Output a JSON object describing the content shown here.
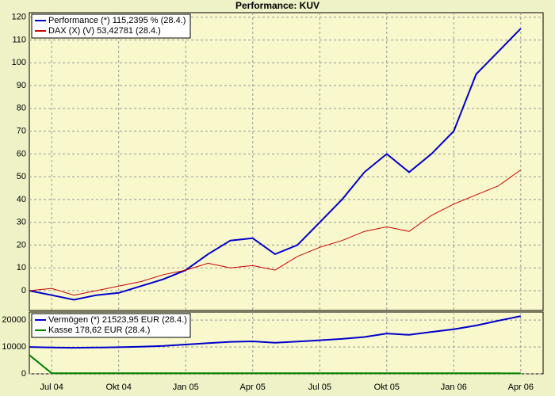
{
  "chart_data": [
    {
      "type": "line",
      "title": "Performance: KUV",
      "x": [
        "2004-06",
        "2004-07",
        "2004-08",
        "2004-09",
        "2004-10",
        "2004-11",
        "2004-12",
        "2005-01",
        "2005-02",
        "2005-03",
        "2005-04",
        "2005-05",
        "2005-06",
        "2005-07",
        "2005-08",
        "2005-09",
        "2005-10",
        "2005-11",
        "2005-12",
        "2006-01",
        "2006-02",
        "2006-03",
        "2006-04"
      ],
      "xlim": [
        "2004-06",
        "2006-05"
      ],
      "series": [
        {
          "name": "Performance (*) 115,2395 % (28.4.)",
          "color": "#0000cc",
          "values": [
            0,
            -2,
            -4,
            -2,
            -1,
            2,
            5,
            9,
            16,
            22,
            23,
            16,
            20,
            30,
            40,
            52,
            60,
            52,
            60,
            70,
            95,
            105,
            115
          ]
        },
        {
          "name": "DAX (X) (V) 53,42781 (28.4.)",
          "color": "#cc0000",
          "values": [
            0,
            1,
            -2,
            0,
            2,
            4,
            7,
            9,
            12,
            10,
            11,
            9,
            15,
            19,
            22,
            26,
            28,
            26,
            33,
            38,
            42,
            46,
            53
          ]
        }
      ],
      "ylim": [
        -8.7,
        122
      ],
      "yticks": [
        0,
        10,
        20,
        30,
        40,
        50,
        60,
        70,
        80,
        90,
        100,
        110,
        120
      ],
      "grid": true,
      "legend": "top-left"
    },
    {
      "type": "line",
      "x": [
        "2004-06",
        "2004-07",
        "2004-08",
        "2004-09",
        "2004-10",
        "2004-11",
        "2004-12",
        "2005-01",
        "2005-02",
        "2005-03",
        "2005-04",
        "2005-05",
        "2005-06",
        "2005-07",
        "2005-08",
        "2005-09",
        "2005-10",
        "2005-11",
        "2005-12",
        "2006-01",
        "2006-02",
        "2006-03",
        "2006-04"
      ],
      "xlim": [
        "2004-06",
        "2006-05"
      ],
      "xticks": [
        {
          "value": "2004-07",
          "label": "Jul 04"
        },
        {
          "value": "2004-10",
          "label": "Okt 04"
        },
        {
          "value": "2005-01",
          "label": "Jan 05"
        },
        {
          "value": "2005-04",
          "label": "Apr 05"
        },
        {
          "value": "2005-07",
          "label": "Jul 05"
        },
        {
          "value": "2005-10",
          "label": "Okt 05"
        },
        {
          "value": "2006-01",
          "label": "Jan 06"
        },
        {
          "value": "2006-04",
          "label": "Apr 06"
        }
      ],
      "series": [
        {
          "name": "Vermögen (*) 21523,95 EUR (28.4.)",
          "color": "#0000cc",
          "values": [
            10000,
            9800,
            9700,
            9800,
            9900,
            10100,
            10400,
            10900,
            11400,
            11900,
            12100,
            11600,
            12000,
            12500,
            13000,
            13700,
            15000,
            14500,
            15600,
            16600,
            18000,
            19800,
            21500
          ]
        },
        {
          "name": "Kasse 178,62 EUR (28.4.)",
          "color": "#008000",
          "values": [
            7000,
            200,
            200,
            200,
            200,
            200,
            200,
            200,
            200,
            200,
            200,
            200,
            200,
            200,
            200,
            200,
            200,
            200,
            200,
            200,
            200,
            200,
            178.62
          ]
        }
      ],
      "ylim": [
        0,
        23000
      ],
      "yticks": [
        0,
        10000,
        20000
      ],
      "grid": true,
      "legend": "top-left"
    }
  ]
}
